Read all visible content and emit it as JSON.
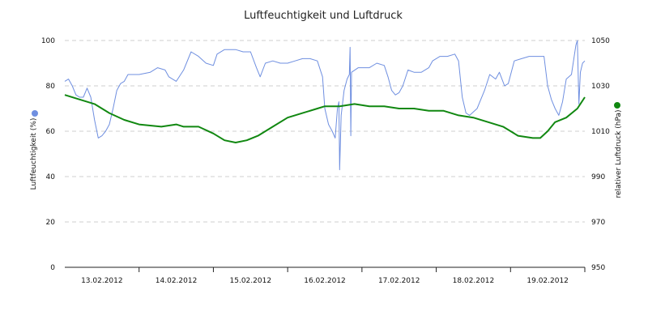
{
  "chart_data": {
    "type": "line",
    "title": "Luftfeuchtigkeit und Luftdruck",
    "x_labels": [
      "13.02.2012",
      "14.02.2012",
      "15.02.2012",
      "16.02.2012",
      "17.02.2012",
      "18.02.2012",
      "19.02.2012"
    ],
    "x_range_days": [
      0,
      7
    ],
    "y_left": {
      "label": "Luftfeuchtigkeit (%)",
      "ticks": [
        "0",
        "20",
        "40",
        "60",
        "80",
        "100"
      ],
      "range": [
        0,
        100
      ]
    },
    "y_right": {
      "label": "relativer Luftdruck (hPa)",
      "ticks": [
        "950",
        "970",
        "990",
        "1010",
        "1030",
        "1050"
      ],
      "range": [
        950,
        1050
      ]
    },
    "grid": "horizontal dashed",
    "colors": {
      "humidity": "#6f8fe0",
      "pressure": "#118811"
    },
    "series": [
      {
        "name": "",
        "axis": "left",
        "color": "#6f8fe0",
        "points": [
          [
            0.0,
            82
          ],
          [
            0.05,
            83
          ],
          [
            0.1,
            80
          ],
          [
            0.15,
            76
          ],
          [
            0.2,
            75
          ],
          [
            0.25,
            75
          ],
          [
            0.3,
            79
          ],
          [
            0.35,
            75
          ],
          [
            0.4,
            65
          ],
          [
            0.45,
            57
          ],
          [
            0.5,
            58
          ],
          [
            0.55,
            60
          ],
          [
            0.6,
            63
          ],
          [
            0.65,
            70
          ],
          [
            0.7,
            78
          ],
          [
            0.75,
            81
          ],
          [
            0.8,
            82
          ],
          [
            0.85,
            85
          ],
          [
            1.0,
            85
          ],
          [
            1.15,
            86
          ],
          [
            1.25,
            88
          ],
          [
            1.35,
            87
          ],
          [
            1.4,
            84
          ],
          [
            1.5,
            82
          ],
          [
            1.6,
            87
          ],
          [
            1.7,
            95
          ],
          [
            1.8,
            93
          ],
          [
            1.9,
            90
          ],
          [
            2.0,
            89
          ],
          [
            2.05,
            94
          ],
          [
            2.15,
            96
          ],
          [
            2.3,
            96
          ],
          [
            2.4,
            95
          ],
          [
            2.5,
            95
          ],
          [
            2.58,
            88
          ],
          [
            2.63,
            84
          ],
          [
            2.7,
            90
          ],
          [
            2.8,
            91
          ],
          [
            2.9,
            90
          ],
          [
            3.0,
            90
          ],
          [
            3.1,
            91
          ],
          [
            3.2,
            92
          ],
          [
            3.3,
            92
          ],
          [
            3.4,
            91
          ],
          [
            3.47,
            84
          ],
          [
            3.5,
            70
          ],
          [
            3.55,
            63
          ],
          [
            3.6,
            60
          ],
          [
            3.64,
            57
          ],
          [
            3.67,
            70
          ],
          [
            3.69,
            73
          ],
          [
            3.7,
            43
          ],
          [
            3.72,
            67
          ],
          [
            3.76,
            78
          ],
          [
            3.8,
            83
          ],
          [
            3.83,
            85
          ],
          [
            3.84,
            97
          ],
          [
            3.85,
            58
          ],
          [
            3.86,
            86
          ],
          [
            3.95,
            88
          ],
          [
            4.1,
            88
          ],
          [
            4.2,
            90
          ],
          [
            4.3,
            89
          ],
          [
            4.35,
            84
          ],
          [
            4.4,
            78
          ],
          [
            4.45,
            76
          ],
          [
            4.5,
            77
          ],
          [
            4.55,
            80
          ],
          [
            4.62,
            87
          ],
          [
            4.7,
            86
          ],
          [
            4.8,
            86
          ],
          [
            4.9,
            88
          ],
          [
            4.95,
            91
          ],
          [
            5.05,
            93
          ],
          [
            5.15,
            93
          ],
          [
            5.25,
            94
          ],
          [
            5.3,
            91
          ],
          [
            5.35,
            75
          ],
          [
            5.4,
            68
          ],
          [
            5.45,
            67
          ],
          [
            5.55,
            70
          ],
          [
            5.65,
            78
          ],
          [
            5.72,
            85
          ],
          [
            5.8,
            83
          ],
          [
            5.85,
            86
          ],
          [
            5.92,
            80
          ],
          [
            5.97,
            81
          ],
          [
            6.05,
            91
          ],
          [
            6.15,
            92
          ],
          [
            6.25,
            93
          ],
          [
            6.35,
            93
          ],
          [
            6.45,
            93
          ],
          [
            6.5,
            80
          ],
          [
            6.55,
            74
          ],
          [
            6.6,
            70
          ],
          [
            6.65,
            67
          ],
          [
            6.7,
            73
          ],
          [
            6.75,
            83
          ],
          [
            6.82,
            85
          ],
          [
            6.88,
            98
          ],
          [
            6.9,
            100
          ],
          [
            6.92,
            72
          ],
          [
            6.94,
            86
          ],
          [
            6.97,
            90
          ],
          [
            7.0,
            91
          ]
        ]
      },
      {
        "name": "",
        "axis": "right",
        "color": "#118811",
        "points": [
          [
            0.0,
            1026
          ],
          [
            0.2,
            1024
          ],
          [
            0.4,
            1022
          ],
          [
            0.6,
            1018
          ],
          [
            0.8,
            1015
          ],
          [
            1.0,
            1013
          ],
          [
            1.3,
            1012
          ],
          [
            1.5,
            1013
          ],
          [
            1.6,
            1012
          ],
          [
            1.8,
            1012
          ],
          [
            2.0,
            1009
          ],
          [
            2.15,
            1006
          ],
          [
            2.3,
            1005
          ],
          [
            2.45,
            1006
          ],
          [
            2.6,
            1008
          ],
          [
            2.8,
            1012
          ],
          [
            3.0,
            1016
          ],
          [
            3.2,
            1018
          ],
          [
            3.4,
            1020
          ],
          [
            3.5,
            1021
          ],
          [
            3.7,
            1021
          ],
          [
            3.9,
            1022
          ],
          [
            4.1,
            1021
          ],
          [
            4.3,
            1021
          ],
          [
            4.5,
            1020
          ],
          [
            4.7,
            1020
          ],
          [
            4.9,
            1019
          ],
          [
            5.1,
            1019
          ],
          [
            5.3,
            1017
          ],
          [
            5.5,
            1016
          ],
          [
            5.7,
            1014
          ],
          [
            5.9,
            1012
          ],
          [
            6.1,
            1008
          ],
          [
            6.3,
            1007
          ],
          [
            6.4,
            1007
          ],
          [
            6.5,
            1010
          ],
          [
            6.6,
            1014
          ],
          [
            6.75,
            1016
          ],
          [
            6.9,
            1020
          ],
          [
            7.0,
            1025
          ]
        ]
      }
    ]
  }
}
